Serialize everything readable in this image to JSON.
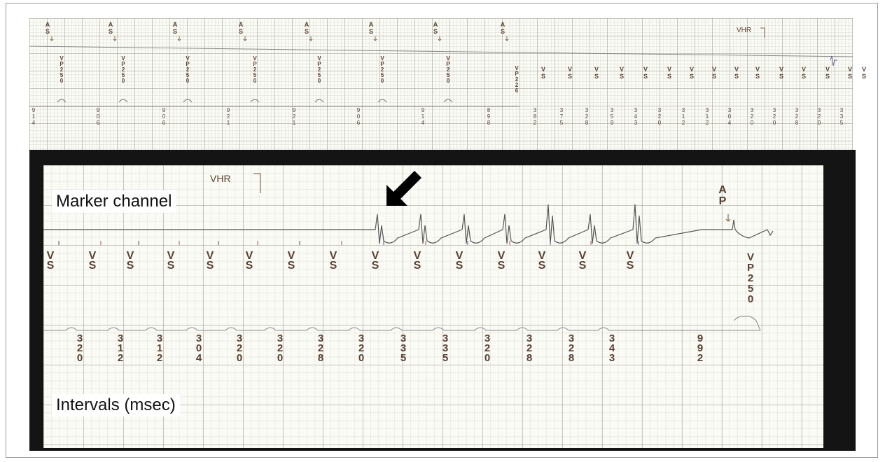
{
  "labels": {
    "marker_channel": "Marker channel",
    "intervals": "Intervals (msec)"
  },
  "top_strip": {
    "vhr": "VHR",
    "as_markers": [
      "A S",
      "A S",
      "A S",
      "A S",
      "A S",
      "A S",
      "A S",
      "A S"
    ],
    "vp_markers": [
      "V P 2 5 0",
      "V P 2 5 0",
      "V P 2 5 0",
      "V P 2 5 0",
      "V P 2 5 0",
      "V P 2 5 0",
      "V P 2 5 0"
    ],
    "vs_markers": [
      "V P 2 2 6",
      "V S",
      "V S",
      "V S",
      "V S",
      "V S",
      "V S",
      "V S",
      "V S",
      "V S",
      "V S",
      "V S",
      "V S",
      "V S",
      "V S",
      "V S"
    ],
    "intervals": [
      "914",
      "906",
      "906",
      "921",
      "921",
      "906",
      "914",
      "898",
      "382",
      "375",
      "328",
      "359",
      "343",
      "320",
      "312",
      "312",
      "304",
      "320",
      "320",
      "328",
      "320",
      "335"
    ]
  },
  "bottom_strip": {
    "vhr": "VHR",
    "vs_markers": [
      "V S",
      "V S",
      "V S",
      "V S",
      "V S",
      "V S",
      "V S",
      "V S",
      "V S",
      "V S",
      "V S",
      "V S",
      "V S",
      "V S",
      "V S"
    ],
    "ap_marker": "A P",
    "vp_marker": [
      "V",
      "P",
      "2",
      "5",
      "0"
    ],
    "intervals": [
      "320",
      "312",
      "312",
      "304",
      "320",
      "320",
      "328",
      "320",
      "335",
      "335",
      "320",
      "328",
      "328",
      "343",
      "992"
    ]
  },
  "colors": {
    "marker_text": "#5a4030",
    "trace": "#555555",
    "arrow": "#000000",
    "frame": "#141414"
  }
}
